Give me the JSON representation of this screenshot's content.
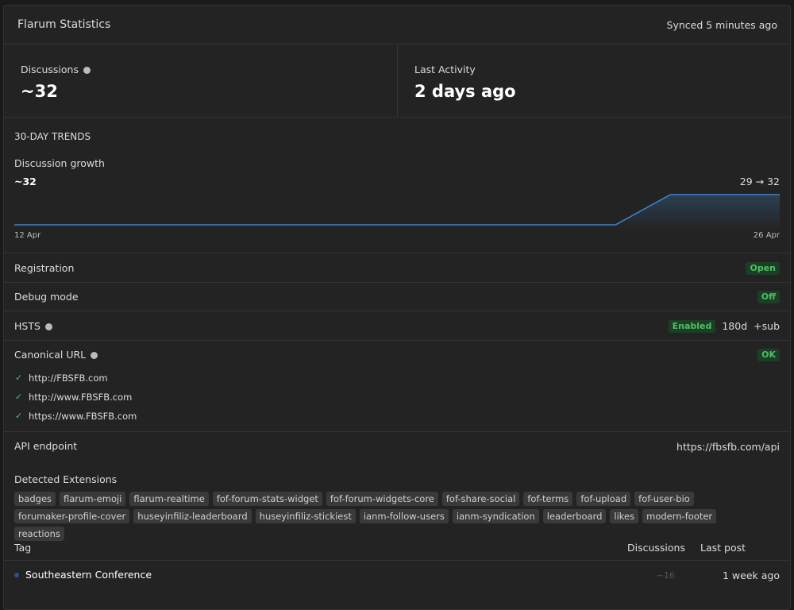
{
  "header": {
    "title": "Flarum Statistics",
    "sync": "Synced 5 minutes ago"
  },
  "stats": [
    {
      "label": "Discussions",
      "value": "~32"
    },
    {
      "label": "Last Activity",
      "value": "2 days ago"
    }
  ],
  "trends": {
    "heading": "30-DAY TRENDS",
    "title": "Discussion growth",
    "current": "~32",
    "change": "29 → 32",
    "start_label": "12 Apr",
    "end_label": "26 Apr",
    "color": "#3f82c4",
    "values": [
      29,
      29,
      29,
      29,
      29,
      29,
      29,
      29,
      29,
      29,
      29,
      29,
      32,
      32,
      32
    ]
  },
  "settings": [
    {
      "label": "Registration",
      "badge": "Open"
    },
    {
      "label": "Debug mode",
      "badge": "Off"
    },
    {
      "label": "HSTS",
      "badge": "Enabled",
      "extra": [
        "180d",
        "+sub"
      ]
    },
    {
      "label": "Canonical URL",
      "badge": "OK",
      "urls": [
        "http://FBSFB.com",
        "http://www.FBSFB.com",
        "https://www.FBSFB.com"
      ]
    }
  ],
  "api": {
    "label": "API endpoint",
    "value": "https://fbsfb.com/api"
  },
  "extensions": {
    "title": "Detected Extensions",
    "items": [
      "badges",
      "flarum-emoji",
      "flarum-realtime",
      "fof-forum-stats-widget",
      "fof-forum-widgets-core",
      "fof-share-social",
      "fof-terms",
      "fof-upload",
      "fof-user-bio",
      "forumaker-profile-cover",
      "huseyinfiliz-leaderboard",
      "huseyinfiliz-stickiest",
      "ianm-follow-users",
      "ianm-syndication",
      "leaderboard",
      "likes",
      "modern-footer",
      "reactions"
    ]
  },
  "tags": {
    "columns": [
      "Tag",
      "Discussions",
      "Last post"
    ],
    "rows": [
      [
        "Southeastern Conference",
        "~16",
        "1 week ago"
      ]
    ]
  }
}
